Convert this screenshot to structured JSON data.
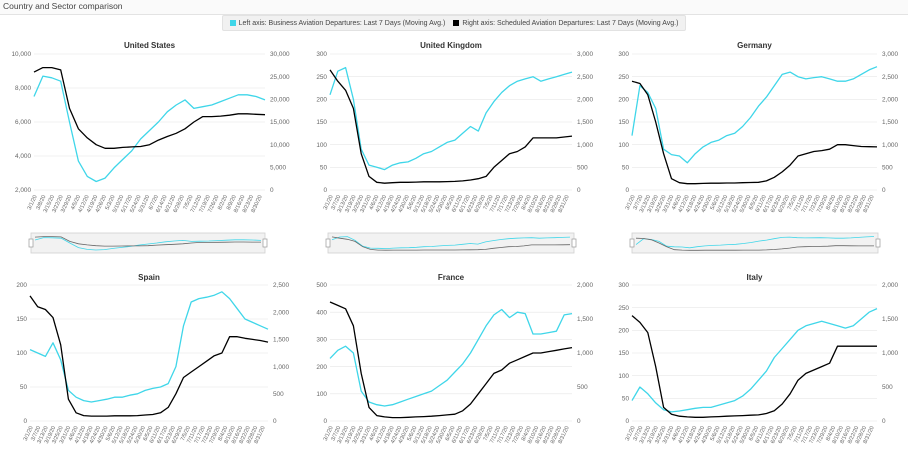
{
  "header": {
    "title": "Country and Sector comparison"
  },
  "legend": {
    "left_label": "Left axis: Business Aviation Departures: Last 7 Days (Moving Avg.)",
    "right_label": "Right axis: Scheduled Aviation Departures: Last 7 Days (Moving Avg.)",
    "left_color": "#3fd6e9",
    "right_color": "#000000"
  },
  "chart_data": [
    {
      "type": "line",
      "title": "United States",
      "left_ticks": [
        "2,000",
        "4,000",
        "6,000",
        "8,000",
        "10,000"
      ],
      "left_ylim": [
        2000,
        10000
      ],
      "right_ticks": [
        "0",
        "5,000",
        "10,000",
        "15,000",
        "20,000",
        "25,000",
        "30,000"
      ],
      "right_ylim": [
        0,
        30000
      ],
      "x_labels": [
        "3/1/20",
        "3/8/20",
        "3/15/20",
        "3/22/20",
        "3/29/20",
        "4/5/20",
        "4/12/20",
        "4/19/20",
        "4/26/20",
        "5/3/20",
        "5/10/20",
        "5/17/20",
        "5/24/20",
        "5/31/20",
        "6/7/20",
        "6/14/20",
        "6/21/20",
        "6/28/20",
        "7/5/20",
        "7/12/20",
        "7/19/20",
        "7/26/20",
        "8/2/20",
        "8/9/20",
        "8/16/20",
        "8/23/20",
        "8/30/20"
      ],
      "series": [
        {
          "name": "Business Aviation Departures",
          "axis": "left",
          "values": [
            7500,
            8700,
            8600,
            8400,
            6000,
            3700,
            2800,
            2500,
            2700,
            3300,
            3800,
            4300,
            5000,
            5500,
            6000,
            6600,
            7000,
            7300,
            6800,
            6900,
            7000,
            7200,
            7400,
            7600,
            7600,
            7500,
            7300
          ]
        },
        {
          "name": "Scheduled Aviation Departures",
          "axis": "right",
          "values": [
            26000,
            27000,
            27000,
            26500,
            18000,
            13500,
            11500,
            10000,
            9200,
            9200,
            9400,
            9500,
            9600,
            10000,
            11000,
            11800,
            12500,
            13500,
            15000,
            16200,
            16200,
            16300,
            16500,
            16800,
            16800,
            16700,
            16600
          ]
        }
      ],
      "has_navigator": true
    },
    {
      "type": "line",
      "title": "United Kingdom",
      "left_ticks": [
        "0",
        "50",
        "100",
        "150",
        "200",
        "250",
        "300"
      ],
      "left_ylim": [
        0,
        300
      ],
      "right_ticks": [
        "0",
        "500",
        "1,000",
        "1,500",
        "2,000",
        "2,500",
        "3,000"
      ],
      "right_ylim": [
        0,
        3000
      ],
      "x_labels": [
        "3/1/20",
        "3/7/20",
        "3/13/20",
        "3/19/20",
        "3/25/20",
        "3/31/20",
        "4/6/20",
        "4/12/20",
        "4/18/20",
        "4/24/20",
        "4/30/20",
        "5/6/20",
        "5/12/20",
        "5/18/20",
        "5/24/20",
        "5/30/20",
        "6/5/20",
        "6/11/20",
        "6/17/20",
        "6/23/20",
        "6/29/20",
        "7/5/20",
        "7/11/20",
        "7/17/20",
        "7/23/20",
        "7/29/20",
        "8/4/20",
        "8/10/20",
        "8/16/20",
        "8/22/20",
        "8/28/20",
        "8/31/20"
      ],
      "series": [
        {
          "name": "Business Aviation Departures",
          "axis": "left",
          "values": [
            210,
            262,
            270,
            200,
            90,
            55,
            50,
            45,
            55,
            60,
            62,
            70,
            80,
            85,
            95,
            105,
            110,
            125,
            140,
            130,
            170,
            195,
            215,
            230,
            240,
            245,
            250,
            240,
            245,
            250,
            255,
            260
          ]
        },
        {
          "name": "Scheduled Aviation Departures",
          "axis": "right",
          "values": [
            2650,
            2400,
            2200,
            1800,
            800,
            300,
            170,
            150,
            160,
            170,
            170,
            175,
            180,
            180,
            180,
            185,
            190,
            200,
            220,
            250,
            300,
            500,
            650,
            800,
            850,
            950,
            1150,
            1150,
            1150,
            1150,
            1170,
            1190
          ]
        }
      ],
      "has_navigator": true
    },
    {
      "type": "line",
      "title": "Germany",
      "left_ticks": [
        "0",
        "50",
        "100",
        "150",
        "200",
        "250",
        "300"
      ],
      "left_ylim": [
        0,
        300
      ],
      "right_ticks": [
        "0",
        "500",
        "1,000",
        "1,500",
        "2,000",
        "2,500",
        "3,000"
      ],
      "right_ylim": [
        0,
        3000
      ],
      "x_labels": [
        "3/1/20",
        "3/7/20",
        "3/13/20",
        "3/19/20",
        "3/25/20",
        "3/31/20",
        "4/6/20",
        "4/12/20",
        "4/18/20",
        "4/24/20",
        "4/30/20",
        "5/6/20",
        "5/12/20",
        "5/18/20",
        "5/24/20",
        "5/30/20",
        "6/5/20",
        "6/11/20",
        "6/17/20",
        "6/23/20",
        "6/29/20",
        "7/5/20",
        "7/11/20",
        "7/17/20",
        "7/23/20",
        "7/29/20",
        "8/4/20",
        "8/10/20",
        "8/16/20",
        "8/22/20",
        "8/28/20",
        "8/31/20"
      ],
      "series": [
        {
          "name": "Business Aviation Departures",
          "axis": "left",
          "values": [
            120,
            230,
            215,
            180,
            90,
            78,
            75,
            60,
            80,
            95,
            105,
            110,
            120,
            125,
            140,
            160,
            185,
            205,
            230,
            255,
            260,
            250,
            245,
            248,
            250,
            245,
            240,
            240,
            245,
            255,
            265,
            272
          ]
        },
        {
          "name": "Scheduled Aviation Departures",
          "axis": "right",
          "values": [
            2400,
            2350,
            2100,
            1500,
            800,
            250,
            160,
            140,
            140,
            145,
            150,
            150,
            155,
            155,
            160,
            165,
            170,
            200,
            280,
            400,
            550,
            750,
            800,
            850,
            870,
            900,
            1000,
            1000,
            980,
            960,
            955,
            950
          ]
        }
      ],
      "has_navigator": true
    },
    {
      "type": "line",
      "title": "Spain",
      "left_ticks": [
        "0",
        "50",
        "100",
        "150",
        "200"
      ],
      "left_ylim": [
        0,
        200
      ],
      "right_ticks": [
        "0",
        "500",
        "1,000",
        "1,500",
        "2,000",
        "2,500"
      ],
      "right_ylim": [
        0,
        2500
      ],
      "x_labels": [
        "3/1/20",
        "3/7/20",
        "3/13/20",
        "3/19/20",
        "3/25/20",
        "3/31/20",
        "4/6/20",
        "4/12/20",
        "4/18/20",
        "4/24/20",
        "4/30/20",
        "5/6/20",
        "5/12/20",
        "5/18/20",
        "5/24/20",
        "5/30/20",
        "6/5/20",
        "6/11/20",
        "6/17/20",
        "6/23/20",
        "6/29/20",
        "7/5/20",
        "7/11/20",
        "7/17/20",
        "7/23/20",
        "7/29/20",
        "8/4/20",
        "8/10/20",
        "8/16/20",
        "8/22/20",
        "8/28/20",
        "8/31/20"
      ],
      "series": [
        {
          "name": "Business Aviation Departures",
          "axis": "left",
          "values": [
            105,
            100,
            95,
            115,
            90,
            45,
            35,
            30,
            28,
            30,
            32,
            35,
            35,
            38,
            40,
            45,
            48,
            50,
            55,
            80,
            140,
            175,
            180,
            182,
            185,
            190,
            180,
            165,
            150,
            145,
            140,
            135
          ]
        },
        {
          "name": "Scheduled Aviation Departures",
          "axis": "right",
          "values": [
            2300,
            2100,
            2050,
            1900,
            1400,
            400,
            150,
            100,
            90,
            90,
            90,
            95,
            95,
            95,
            100,
            110,
            120,
            150,
            250,
            500,
            800,
            900,
            1000,
            1100,
            1200,
            1250,
            1550,
            1550,
            1520,
            1500,
            1480,
            1450
          ]
        }
      ],
      "has_navigator": false
    },
    {
      "type": "line",
      "title": "France",
      "left_ticks": [
        "0",
        "100",
        "200",
        "300",
        "400",
        "500"
      ],
      "left_ylim": [
        0,
        500
      ],
      "right_ticks": [
        "0",
        "500",
        "1,000",
        "1,500",
        "2,000"
      ],
      "right_ylim": [
        0,
        2000
      ],
      "x_labels": [
        "3/1/20",
        "3/7/20",
        "3/13/20",
        "3/19/20",
        "3/25/20",
        "3/31/20",
        "4/6/20",
        "4/12/20",
        "4/18/20",
        "4/24/20",
        "4/30/20",
        "5/6/20",
        "5/12/20",
        "5/18/20",
        "5/24/20",
        "5/30/20",
        "6/5/20",
        "6/11/20",
        "6/17/20",
        "6/23/20",
        "6/29/20",
        "7/5/20",
        "7/11/20",
        "7/17/20",
        "7/23/20",
        "7/29/20",
        "8/4/20",
        "8/10/20",
        "8/16/20",
        "8/22/20",
        "8/28/20",
        "8/31/20"
      ],
      "series": [
        {
          "name": "Business Aviation Departures",
          "axis": "left",
          "values": [
            230,
            260,
            275,
            250,
            110,
            70,
            60,
            55,
            60,
            70,
            80,
            90,
            100,
            110,
            130,
            150,
            180,
            210,
            250,
            300,
            350,
            390,
            410,
            380,
            400,
            395,
            320,
            320,
            325,
            330,
            390,
            395
          ]
        },
        {
          "name": "Scheduled Aviation Departures",
          "axis": "right",
          "values": [
            1750,
            1700,
            1650,
            1400,
            700,
            200,
            80,
            60,
            50,
            50,
            55,
            60,
            65,
            70,
            80,
            90,
            100,
            150,
            250,
            400,
            550,
            700,
            750,
            850,
            900,
            950,
            1000,
            1000,
            1020,
            1040,
            1060,
            1080
          ]
        }
      ],
      "has_navigator": false
    },
    {
      "type": "line",
      "title": "Italy",
      "left_ticks": [
        "0",
        "50",
        "100",
        "150",
        "200",
        "250",
        "300"
      ],
      "left_ylim": [
        0,
        300
      ],
      "right_ticks": [
        "0",
        "500",
        "1,000",
        "1,500",
        "2,000"
      ],
      "right_ylim": [
        0,
        2000
      ],
      "x_labels": [
        "3/1/20",
        "3/7/20",
        "3/13/20",
        "3/19/20",
        "3/25/20",
        "3/31/20",
        "4/6/20",
        "4/12/20",
        "4/18/20",
        "4/24/20",
        "4/30/20",
        "5/6/20",
        "5/12/20",
        "5/18/20",
        "5/24/20",
        "5/30/20",
        "6/5/20",
        "6/11/20",
        "6/17/20",
        "6/23/20",
        "6/29/20",
        "7/5/20",
        "7/11/20",
        "7/17/20",
        "7/23/20",
        "7/29/20",
        "8/4/20",
        "8/10/20",
        "8/16/20",
        "8/22/20",
        "8/28/20",
        "8/31/20"
      ],
      "series": [
        {
          "name": "Business Aviation Departures",
          "axis": "left",
          "values": [
            45,
            75,
            60,
            40,
            25,
            20,
            22,
            25,
            28,
            30,
            30,
            35,
            40,
            45,
            55,
            70,
            90,
            110,
            140,
            160,
            180,
            200,
            210,
            215,
            220,
            215,
            210,
            205,
            210,
            225,
            240,
            248
          ]
        },
        {
          "name": "Scheduled Aviation Departures",
          "axis": "right",
          "values": [
            1550,
            1450,
            1300,
            800,
            200,
            100,
            70,
            60,
            55,
            55,
            60,
            65,
            70,
            75,
            80,
            85,
            90,
            110,
            150,
            250,
            400,
            600,
            700,
            750,
            800,
            850,
            1100,
            1100,
            1100,
            1100,
            1100,
            1100
          ]
        }
      ],
      "has_navigator": false
    }
  ]
}
